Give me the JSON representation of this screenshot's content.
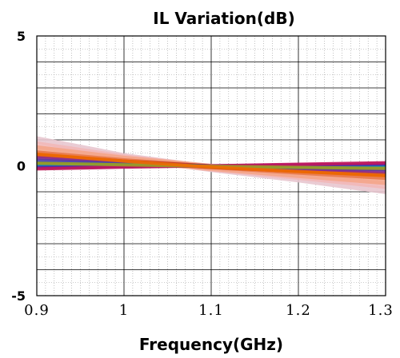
{
  "chart_data": {
    "type": "line",
    "title": "IL Variation(dB)",
    "xlabel": "Frequency(GHz)",
    "ylabel": "",
    "xlim": [
      0.9,
      1.3
    ],
    "ylim": [
      -5,
      5
    ],
    "x_ticks": [
      "0.9",
      "1",
      "1.1",
      "1.2",
      "1.3"
    ],
    "y_ticks": [
      "5",
      "0",
      "-5"
    ],
    "y_tick_values": [
      5,
      0,
      -5
    ],
    "grid": true,
    "legend": "none",
    "x": [
      0.9,
      1.0,
      1.1,
      1.2,
      1.3
    ],
    "series": [
      {
        "color": "#e8c6cf",
        "values": [
          1.0,
          0.35,
          -0.1,
          -0.5,
          -0.95
        ]
      },
      {
        "color": "#f2b8b8",
        "values": [
          0.8,
          0.3,
          -0.08,
          -0.4,
          -0.75
        ]
      },
      {
        "color": "#f4a58a",
        "values": [
          0.65,
          0.25,
          -0.06,
          -0.33,
          -0.6
        ]
      },
      {
        "color": "#e8794a",
        "values": [
          0.5,
          0.2,
          -0.04,
          -0.25,
          -0.45
        ]
      },
      {
        "color": "#c0392b",
        "values": [
          0.4,
          0.15,
          -0.03,
          -0.18,
          -0.33
        ]
      },
      {
        "color": "#8b2f8f",
        "values": [
          0.3,
          0.12,
          -0.02,
          -0.12,
          -0.22
        ]
      },
      {
        "color": "#5b3a9e",
        "values": [
          0.22,
          0.08,
          -0.01,
          -0.08,
          -0.15
        ]
      },
      {
        "color": "#3f51b5",
        "values": [
          0.14,
          0.05,
          0.0,
          -0.04,
          -0.08
        ]
      },
      {
        "color": "#2e7d32",
        "values": [
          0.08,
          0.03,
          0.0,
          -0.02,
          -0.04
        ]
      },
      {
        "color": "#26a69a",
        "values": [
          0.02,
          0.01,
          0.0,
          0.0,
          0.0
        ]
      },
      {
        "color": "#1565c0",
        "values": [
          -0.03,
          -0.01,
          0.0,
          0.02,
          0.04
        ]
      },
      {
        "color": "#6a1b9a",
        "values": [
          -0.08,
          -0.03,
          0.0,
          0.04,
          0.08
        ]
      },
      {
        "color": "#c2185b",
        "values": [
          -0.12,
          -0.05,
          0.0,
          0.06,
          0.12
        ]
      },
      {
        "color": "#9e9d24",
        "values": [
          0.1,
          0.04,
          -0.02,
          -0.06,
          -0.1
        ]
      },
      {
        "color": "#ef6c00",
        "values": [
          0.45,
          0.18,
          -0.05,
          -0.22,
          -0.38
        ]
      }
    ]
  }
}
